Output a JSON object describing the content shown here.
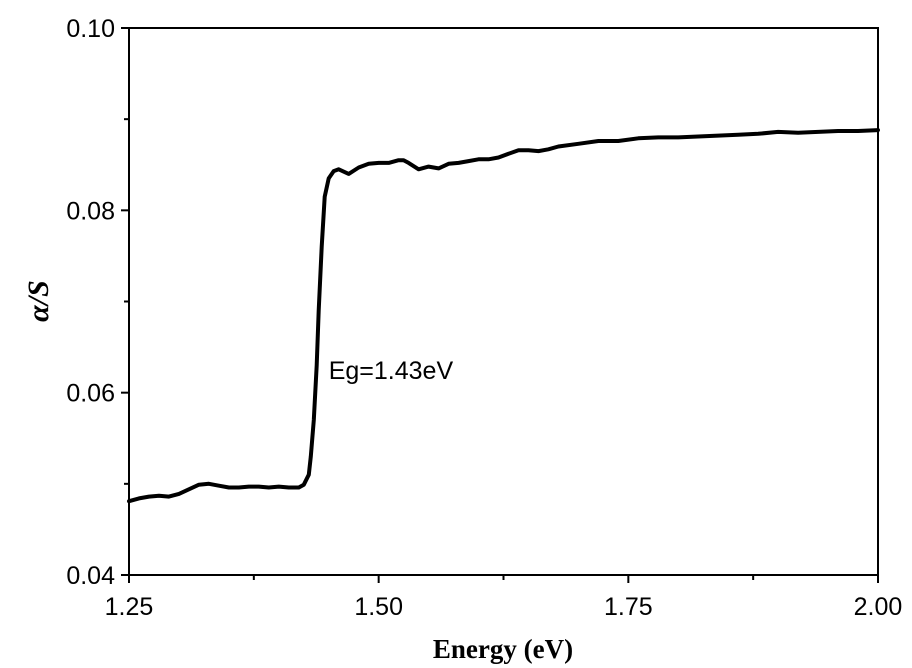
{
  "chart_data": {
    "type": "line",
    "title": "",
    "xlabel": "Energy (eV)",
    "ylabel": "α/S",
    "xlim": [
      1.25,
      2.0
    ],
    "ylim": [
      0.04,
      0.1
    ],
    "xticks": [
      1.25,
      1.5,
      1.75,
      2.0
    ],
    "xtick_labels": [
      "1.25",
      "1.50",
      "1.75",
      "2.00"
    ],
    "yticks": [
      0.04,
      0.06,
      0.08,
      0.1
    ],
    "ytick_labels": [
      "0.04",
      "0.06",
      "0.08",
      "0.10"
    ],
    "grid": false,
    "legend": "none",
    "line_color": "#000000",
    "annotations": [
      {
        "text": "Eg=1.43eV",
        "x": 1.45,
        "y": 0.0625
      }
    ],
    "series": [
      {
        "x": [
          1.25,
          1.26,
          1.27,
          1.28,
          1.29,
          1.3,
          1.31,
          1.32,
          1.33,
          1.34,
          1.35,
          1.36,
          1.37,
          1.38,
          1.39,
          1.4,
          1.41,
          1.42,
          1.425,
          1.43,
          1.432,
          1.435,
          1.438,
          1.44,
          1.443,
          1.446,
          1.45,
          1.455,
          1.46,
          1.47,
          1.48,
          1.49,
          1.5,
          1.51,
          1.52,
          1.525,
          1.53,
          1.54,
          1.55,
          1.56,
          1.57,
          1.58,
          1.59,
          1.6,
          1.61,
          1.62,
          1.63,
          1.64,
          1.65,
          1.66,
          1.67,
          1.68,
          1.7,
          1.72,
          1.74,
          1.76,
          1.78,
          1.8,
          1.82,
          1.84,
          1.86,
          1.88,
          1.9,
          1.92,
          1.94,
          1.96,
          1.98,
          2.0
        ],
        "values": [
          0.0481,
          0.0484,
          0.0486,
          0.0487,
          0.0486,
          0.0489,
          0.0494,
          0.0499,
          0.05,
          0.0498,
          0.0496,
          0.0496,
          0.0497,
          0.0497,
          0.0496,
          0.0497,
          0.0496,
          0.0496,
          0.0499,
          0.051,
          0.053,
          0.057,
          0.063,
          0.069,
          0.076,
          0.0815,
          0.0835,
          0.0843,
          0.0845,
          0.084,
          0.0847,
          0.0851,
          0.0852,
          0.0852,
          0.0855,
          0.0855,
          0.0852,
          0.0845,
          0.0848,
          0.0846,
          0.0851,
          0.0852,
          0.0854,
          0.0856,
          0.0856,
          0.0858,
          0.0862,
          0.0866,
          0.0866,
          0.0865,
          0.0867,
          0.087,
          0.0873,
          0.0876,
          0.0876,
          0.0879,
          0.088,
          0.088,
          0.0881,
          0.0882,
          0.0883,
          0.0884,
          0.0886,
          0.0885,
          0.0886,
          0.0887,
          0.0887,
          0.0888
        ]
      }
    ]
  }
}
